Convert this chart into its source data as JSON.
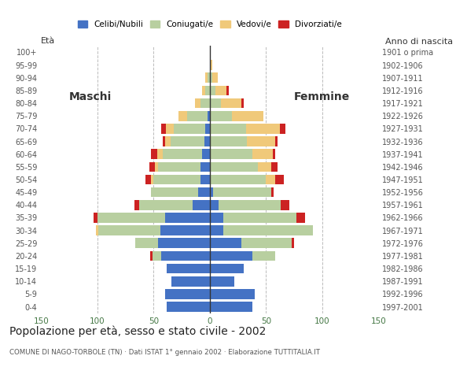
{
  "age_groups": [
    "0-4",
    "5-9",
    "10-14",
    "15-19",
    "20-24",
    "25-29",
    "30-34",
    "35-39",
    "40-44",
    "45-49",
    "50-54",
    "55-59",
    "60-64",
    "65-69",
    "70-74",
    "75-79",
    "80-84",
    "85-89",
    "90-94",
    "95-99",
    "100+"
  ],
  "birth_years": [
    "1997-2001",
    "1992-1996",
    "1987-1991",
    "1982-1986",
    "1977-1981",
    "1972-1976",
    "1967-1971",
    "1962-1966",
    "1957-1961",
    "1952-1956",
    "1947-1951",
    "1942-1946",
    "1937-1941",
    "1932-1936",
    "1927-1931",
    "1922-1926",
    "1917-1921",
    "1912-1916",
    "1907-1911",
    "1902-1906",
    "1901 o prima"
  ],
  "colors": {
    "celibi": "#4472c4",
    "coniugati": "#b8cfa0",
    "vedovi": "#f0c97a",
    "divorziati": "#cc2222"
  },
  "legend_labels": [
    "Celibi/Nubili",
    "Coniugati/e",
    "Vedovi/e",
    "Divorziati/e"
  ],
  "maschi": {
    "celibi": [
      38,
      40,
      34,
      38,
      43,
      46,
      44,
      40,
      15,
      10,
      8,
      8,
      7,
      5,
      4,
      2,
      0,
      0,
      0,
      0,
      0
    ],
    "coniugati": [
      0,
      0,
      0,
      0,
      8,
      20,
      55,
      60,
      48,
      42,
      42,
      38,
      35,
      30,
      28,
      18,
      8,
      4,
      2,
      0,
      0
    ],
    "vedovi": [
      0,
      0,
      0,
      0,
      0,
      0,
      2,
      0,
      0,
      0,
      2,
      3,
      5,
      5,
      7,
      8,
      5,
      3,
      2,
      0,
      0
    ],
    "divorziati": [
      0,
      0,
      0,
      0,
      2,
      0,
      0,
      3,
      4,
      0,
      5,
      5,
      5,
      2,
      4,
      0,
      0,
      0,
      0,
      0,
      0
    ]
  },
  "femmine": {
    "nubili": [
      38,
      40,
      22,
      30,
      38,
      28,
      12,
      12,
      8,
      3,
      0,
      0,
      0,
      0,
      0,
      0,
      0,
      0,
      0,
      0,
      0
    ],
    "coniugate": [
      0,
      0,
      0,
      0,
      20,
      45,
      80,
      65,
      55,
      52,
      50,
      43,
      38,
      33,
      32,
      20,
      10,
      5,
      2,
      0,
      0
    ],
    "vedove": [
      0,
      0,
      0,
      0,
      0,
      0,
      0,
      0,
      0,
      0,
      8,
      12,
      18,
      25,
      30,
      28,
      18,
      10,
      5,
      2,
      0
    ],
    "divorziate": [
      0,
      0,
      0,
      0,
      0,
      2,
      0,
      8,
      8,
      2,
      8,
      5,
      2,
      2,
      5,
      0,
      2,
      2,
      0,
      0,
      0
    ]
  },
  "title": "Popolazione per età, sesso e stato civile - 2002",
  "subtitle": "COMUNE DI NAGO-TORBOLE (TN) · Dati ISTAT 1° gennaio 2002 · Elaborazione TUTTITALIA.IT",
  "label_eta": "Età",
  "label_anno": "Anno di nascita",
  "label_maschi": "Maschi",
  "label_femmine": "Femmine",
  "xlim": 150,
  "background_color": "#ffffff",
  "grid_color": "#bbbbbb"
}
